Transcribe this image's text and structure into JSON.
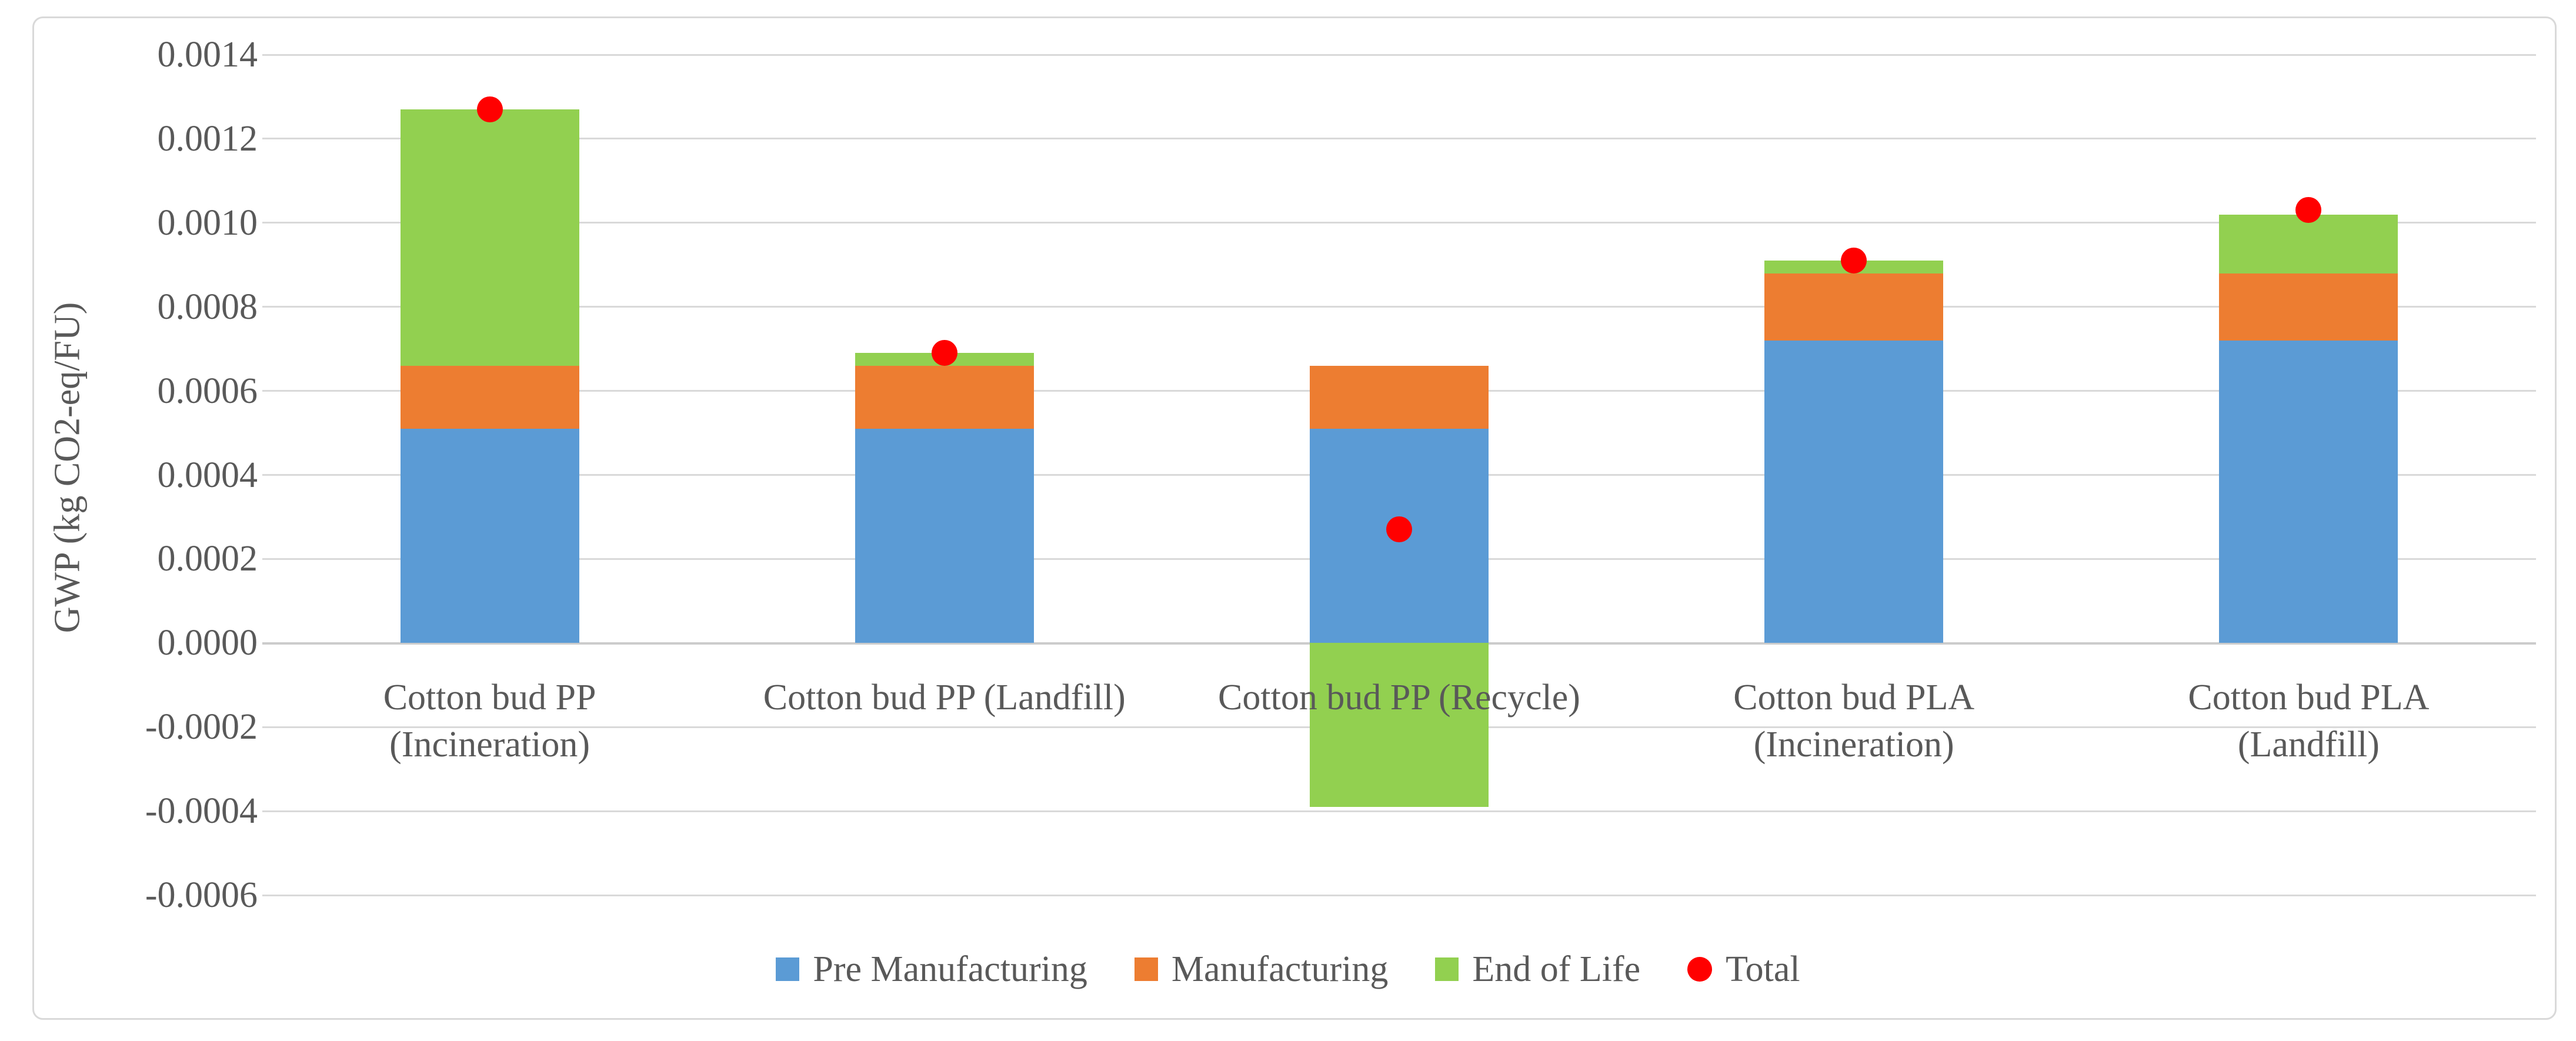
{
  "figure": {
    "background_color": "#ffffff",
    "border_color": "#d9d9d9",
    "text_color": "#595959",
    "gridline_color": "#d9d9d9"
  },
  "y_axis": {
    "title": "GWP (kg CO2-eq/FU)",
    "tick_labels": [
      "0.0014",
      "0.0012",
      "0.0010",
      "0.0008",
      "0.0006",
      "0.0004",
      "0.0002",
      "0.0000",
      "-0.0002",
      "-0.0004",
      "-0.0006"
    ],
    "max": 0.0014,
    "min": -0.0006,
    "step": 0.0002
  },
  "chart_data": {
    "type": "bar",
    "stacked": true,
    "grid": true,
    "legend_position": "bottom",
    "ylabel": "GWP (kg CO2-eq/FU)",
    "ylim": [
      -0.0006,
      0.0014
    ],
    "categories": [
      "Cotton bud PP (Incineration)",
      "Cotton bud PP (Landfill)",
      "Cotton bud PP (Recycle)",
      "Cotton bud PLA (Incineration)",
      "Cotton bud PLA (Landfill)"
    ],
    "category_label_lines": [
      [
        "Cotton bud PP",
        "(Incineration)"
      ],
      [
        "Cotton bud PP (Landfill)"
      ],
      [
        "Cotton bud PP (Recycle)"
      ],
      [
        "Cotton bud PLA",
        "(Incineration)"
      ],
      [
        "Cotton bud PLA",
        "(Landfill)"
      ]
    ],
    "series": [
      {
        "name": "Pre Manufacturing",
        "color": "#5B9BD5",
        "values": [
          0.00051,
          0.00051,
          0.00051,
          0.00072,
          0.00072
        ]
      },
      {
        "name": "Manufacturing",
        "color": "#ED7D31",
        "values": [
          0.00015,
          0.00015,
          0.00015,
          0.00016,
          0.00016
        ]
      },
      {
        "name": "End of Life",
        "color": "#92D050",
        "values": [
          0.00061,
          3e-05,
          -0.00039,
          3e-05,
          0.00014
        ]
      }
    ],
    "totals": {
      "name": "Total",
      "color": "#FF0000",
      "marker": "circle",
      "values": [
        0.00127,
        0.00069,
        0.00027,
        0.00091,
        0.00103
      ]
    }
  }
}
